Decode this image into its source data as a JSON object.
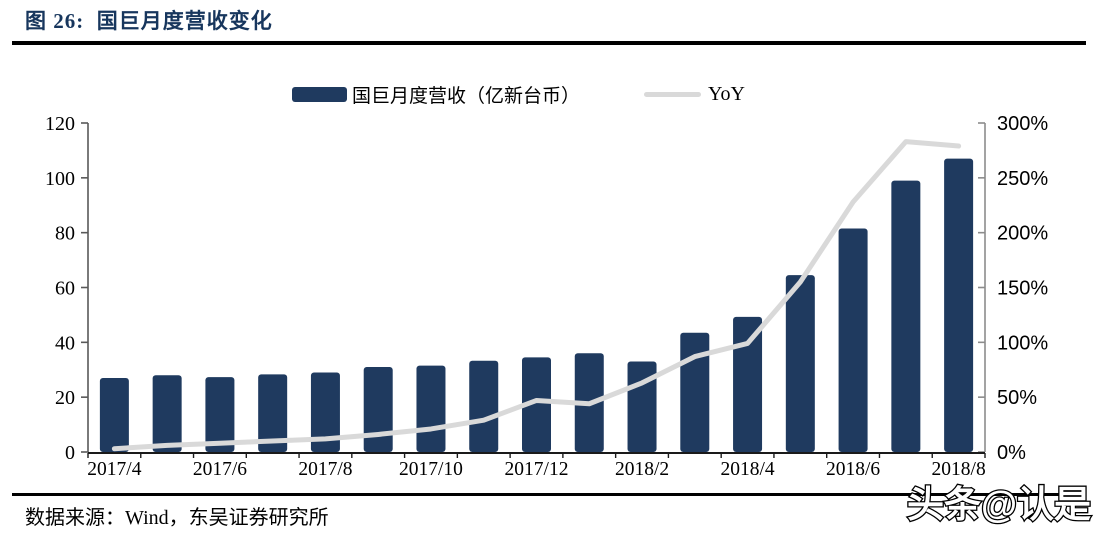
{
  "figure": {
    "title": "图 26:  国巨月度营收变化"
  },
  "legend": {
    "revenue_label": "国巨月度营收（亿新台币）",
    "yoy_label": "YoY"
  },
  "footer": {
    "source": "数据来源：Wind，东吴证券研究所"
  },
  "watermark": {
    "text": "头条@认是"
  },
  "colors": {
    "bar": "#1f3a5f",
    "line": "#d9d9d9",
    "title": "#17365d",
    "left_axis": "#595959",
    "right_axis": "#8c8c8c",
    "x_axis": "#1a1a1a",
    "label_text": "#000000"
  },
  "chart_data": {
    "type": "bar",
    "title": "国巨月度营收变化",
    "categories": [
      "2017/4",
      "2017/5",
      "2017/6",
      "2017/7",
      "2017/8",
      "2017/9",
      "2017/10",
      "2017/11",
      "2017/12",
      "2018/1",
      "2018/2",
      "2018/3",
      "2018/4",
      "2018/5",
      "2018/6",
      "2018/7",
      "2018/8"
    ],
    "series": [
      {
        "name": "国巨月度营收（亿新台币）",
        "type": "bar",
        "axis": "left",
        "values": [
          27,
          28,
          27.3,
          28.3,
          29,
          31,
          31.5,
          33.3,
          34.5,
          36,
          33,
          43.5,
          49.3,
          64.5,
          81.5,
          99,
          107
        ]
      },
      {
        "name": "YoY",
        "type": "line",
        "axis": "right",
        "values_pct": [
          3,
          6,
          8,
          10,
          12,
          16,
          21,
          29,
          47,
          44,
          63,
          87,
          99,
          155,
          228,
          283,
          279
        ]
      }
    ],
    "left_axis": {
      "min": 0,
      "max": 120,
      "step": 20,
      "ticks": [
        0,
        20,
        40,
        60,
        80,
        100,
        120
      ]
    },
    "right_axis": {
      "min_pct": 0,
      "max_pct": 300,
      "step_pct": 50,
      "tick_labels": [
        "0%",
        "50%",
        "100%",
        "150%",
        "200%",
        "250%",
        "300%"
      ]
    },
    "x_tick_labels": [
      "2017/4",
      "2017/6",
      "2017/8",
      "2017/10",
      "2017/12",
      "2018/2",
      "2018/4",
      "2018/6",
      "2018/8"
    ],
    "grid": false,
    "legend_position": "top-center"
  }
}
